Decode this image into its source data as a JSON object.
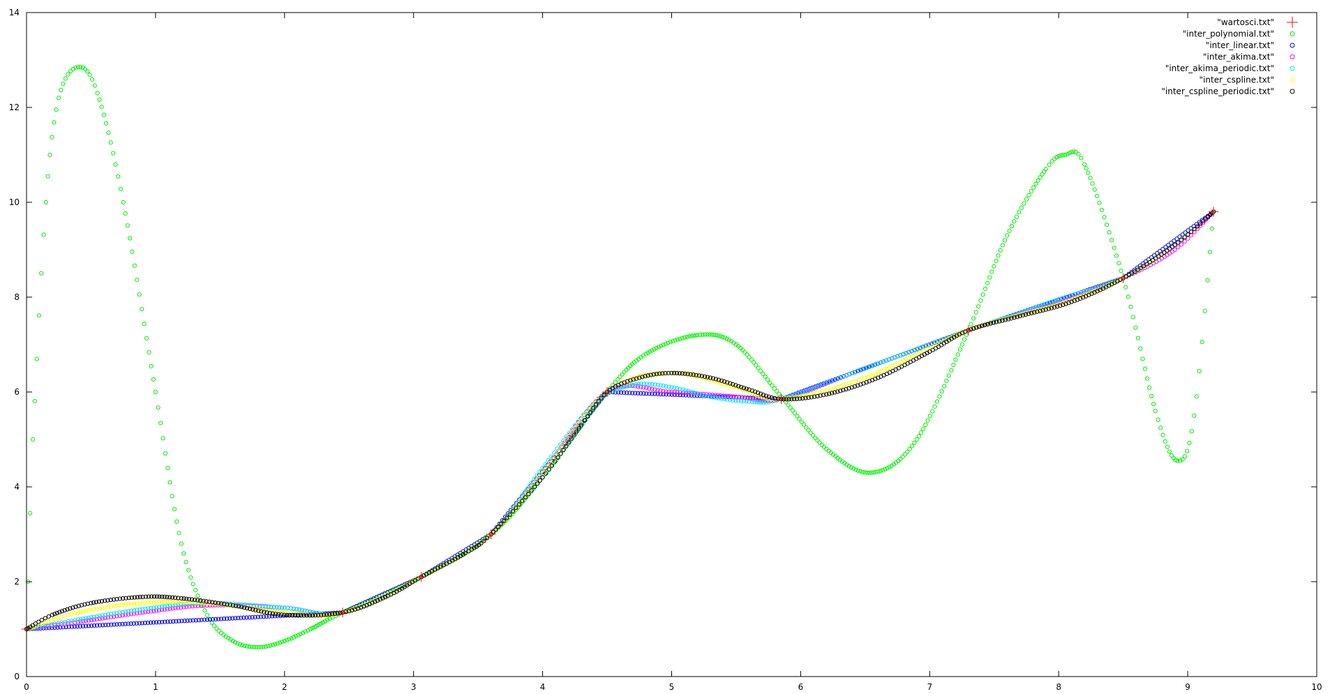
{
  "chart_data": {
    "type": "scatter",
    "title": "",
    "xlabel": "",
    "ylabel": "",
    "xlim": [
      0,
      10
    ],
    "ylim": [
      0,
      14
    ],
    "xticks": [
      "0",
      "1",
      "2",
      "3",
      "4",
      "5",
      "6",
      "7",
      "8",
      "9",
      "10"
    ],
    "yticks": [
      "0",
      "2",
      "4",
      "6",
      "8",
      "10",
      "12",
      "14"
    ],
    "grid": false,
    "legend_position": "top-right",
    "nodes": {
      "x": [
        0,
        2.45,
        3.06,
        3.6,
        4.5,
        5.85,
        7.3,
        8.5,
        9.2
      ],
      "y": [
        1.0,
        1.35,
        2.1,
        3.0,
        6.0,
        5.85,
        7.3,
        8.4,
        9.8
      ]
    },
    "series": [
      {
        "name": "\"wartosci.txt\"",
        "marker": "plus",
        "color": "#ff0000",
        "x": [
          0,
          2.45,
          3.06,
          3.6,
          4.5,
          5.85,
          7.3,
          8.5,
          9.2
        ],
        "y": [
          1.0,
          1.35,
          2.1,
          3.0,
          6.0,
          5.85,
          7.3,
          8.4,
          9.8
        ]
      },
      {
        "name": "\"inter_polynomial.txt\"",
        "marker": "circle",
        "color": "#00ee00",
        "x": [
          0,
          0.05,
          0.15,
          0.25,
          0.4,
          0.55,
          0.75,
          1.0,
          1.2,
          1.4,
          1.6,
          1.8,
          2.0,
          2.2,
          2.45,
          3.06,
          3.6,
          4.0,
          4.5,
          4.8,
          5.2,
          5.5,
          5.85,
          6.2,
          6.55,
          6.9,
          7.3,
          7.6,
          7.9,
          8.05,
          8.2,
          8.5,
          8.75,
          8.92,
          9.05,
          9.2
        ],
        "y": [
          1.0,
          5.0,
          10.0,
          12.2,
          12.85,
          12.3,
          10.0,
          6.0,
          2.8,
          1.3,
          0.75,
          0.62,
          0.75,
          1.0,
          1.35,
          2.1,
          3.0,
          4.2,
          6.0,
          6.8,
          7.2,
          7.0,
          5.9,
          4.8,
          4.3,
          5.0,
          7.3,
          9.3,
          10.7,
          11.0,
          10.8,
          8.4,
          5.6,
          4.55,
          5.5,
          9.8
        ]
      },
      {
        "name": "\"inter_linear.txt\"",
        "marker": "circle",
        "color": "#0000ff",
        "x": [
          0,
          2.45,
          3.06,
          3.6,
          4.5,
          5.85,
          7.3,
          8.5,
          9.2
        ],
        "y": [
          1.0,
          1.35,
          2.1,
          3.0,
          6.0,
          5.85,
          7.3,
          8.4,
          9.8
        ]
      },
      {
        "name": "\"inter_akima.txt\"",
        "marker": "circle",
        "color": "#ff00ff",
        "x": [
          0,
          0.4,
          0.9,
          1.4,
          2.0,
          2.45,
          3.06,
          3.6,
          4.0,
          4.5,
          5.0,
          5.5,
          5.85,
          6.5,
          7.3,
          8.0,
          8.5,
          8.9,
          9.2
        ],
        "y": [
          1.0,
          1.15,
          1.35,
          1.5,
          1.45,
          1.35,
          2.1,
          3.0,
          4.3,
          6.0,
          6.0,
          5.9,
          5.85,
          6.5,
          7.3,
          7.9,
          8.4,
          9.0,
          9.8
        ]
      },
      {
        "name": "\"inter_akima_periodic.txt\"",
        "marker": "circle",
        "color": "#00e0ff",
        "x": [
          0,
          0.4,
          0.9,
          1.4,
          2.0,
          2.45,
          3.06,
          3.6,
          4.0,
          4.4,
          4.7,
          5.0,
          5.3,
          5.6,
          5.85,
          6.5,
          7.3,
          8.0,
          8.5,
          8.9,
          9.2
        ],
        "y": [
          1.0,
          1.2,
          1.42,
          1.55,
          1.45,
          1.35,
          2.1,
          3.0,
          4.4,
          5.75,
          6.15,
          6.1,
          5.9,
          5.8,
          5.85,
          6.5,
          7.3,
          7.95,
          8.4,
          9.1,
          9.8
        ]
      },
      {
        "name": "\"inter_cspline.txt\"",
        "marker": "circle",
        "color": "#ffff00",
        "x": [
          0,
          0.4,
          0.9,
          1.4,
          2.0,
          2.45,
          3.06,
          3.6,
          4.0,
          4.5,
          5.0,
          5.5,
          5.85,
          6.5,
          7.3,
          8.0,
          8.5,
          8.9,
          9.2
        ],
        "y": [
          1.0,
          1.35,
          1.55,
          1.55,
          1.35,
          1.35,
          2.1,
          3.0,
          4.3,
          6.0,
          6.4,
          6.1,
          5.85,
          6.3,
          7.3,
          7.85,
          8.4,
          9.1,
          9.8
        ]
      },
      {
        "name": "\"inter_cspline_periodic.txt\"",
        "marker": "circle",
        "color": "#000000",
        "x": [
          0,
          0.2,
          0.5,
          0.9,
          1.2,
          1.6,
          2.0,
          2.45,
          2.8,
          3.06,
          3.4,
          3.6,
          4.0,
          4.3,
          4.5,
          4.75,
          5.0,
          5.3,
          5.6,
          5.85,
          6.2,
          6.6,
          7.0,
          7.3,
          7.7,
          8.1,
          8.5,
          8.9,
          9.2
        ],
        "y": [
          1.0,
          1.3,
          1.55,
          1.68,
          1.65,
          1.5,
          1.3,
          1.35,
          1.7,
          2.1,
          2.6,
          3.0,
          4.2,
          5.3,
          6.0,
          6.3,
          6.4,
          6.3,
          6.05,
          5.85,
          5.95,
          6.3,
          6.85,
          7.3,
          7.6,
          7.9,
          8.4,
          9.1,
          9.8
        ]
      }
    ]
  }
}
